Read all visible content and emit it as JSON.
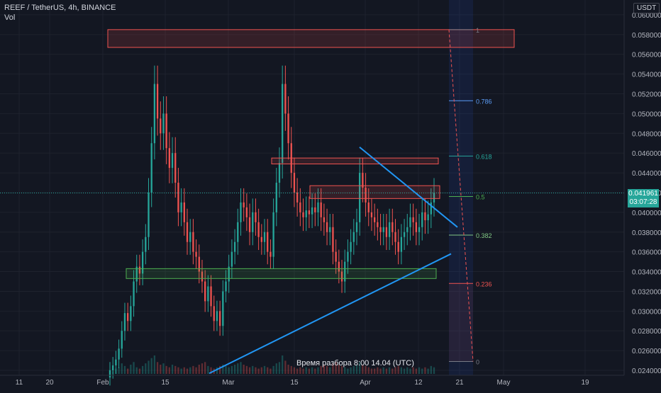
{
  "header": {
    "symbol_line": "REEF / TetherUS, 4h, BINANCE",
    "indicator": "Vol"
  },
  "colors": {
    "background": "#131722",
    "bull": "#26a69a",
    "bear": "#ef5350",
    "trendline": "#2196f3",
    "resistance": "#ef5350",
    "support": "#4caf50",
    "grid": "#1e222d"
  },
  "price_axis": {
    "unit": "USDT",
    "ticks": [
      "0.060000",
      "0.058000",
      "0.056000",
      "0.054000",
      "0.052000",
      "0.050000",
      "0.048000",
      "0.046000",
      "0.044000",
      "0.042000",
      "0.040000",
      "0.038000",
      "0.036000",
      "0.034000",
      "0.032000",
      "0.030000",
      "0.028000",
      "0.026000",
      "0.024000"
    ]
  },
  "current_price": {
    "value": "0.041961",
    "countdown": "03:07:28"
  },
  "time_axis": {
    "ticks": [
      "11",
      "20",
      "Feb",
      "15",
      "Mar",
      "15",
      "Apr",
      "12",
      "21",
      "May",
      "19"
    ]
  },
  "annotation": "Время разбора 8:00 14.04 (UTC)",
  "chart_data": {
    "type": "candlestick",
    "x_ticks": [
      "11",
      "20",
      "Feb",
      "15",
      "Mar",
      "15",
      "Apr",
      "12",
      "21",
      "May",
      "19"
    ],
    "y_range": [
      0.0235,
      0.0615
    ],
    "series": [
      {
        "name": "",
        "close": [
          0.024,
          0.0245,
          0.0251,
          0.0262,
          0.028,
          0.0298,
          0.029,
          0.0305,
          0.033,
          0.0345,
          0.0338,
          0.036,
          0.0375,
          0.042,
          0.047,
          0.053,
          0.0495,
          0.048,
          0.05,
          0.0465,
          0.0445,
          0.046,
          0.043,
          0.04,
          0.041,
          0.039,
          0.037,
          0.038,
          0.036,
          0.0355,
          0.034,
          0.033,
          0.031,
          0.0325,
          0.0305,
          0.029,
          0.03,
          0.0285,
          0.032,
          0.033,
          0.0345,
          0.036,
          0.037,
          0.039,
          0.041,
          0.0405,
          0.0395,
          0.038,
          0.04,
          0.039,
          0.0375,
          0.037,
          0.038,
          0.036,
          0.0355,
          0.04,
          0.043,
          0.045,
          0.053,
          0.05,
          0.047,
          0.044,
          0.042,
          0.041,
          0.04,
          0.0395,
          0.0402,
          0.0398,
          0.0405,
          0.04,
          0.041,
          0.0395,
          0.039,
          0.038,
          0.0385,
          0.036,
          0.035,
          0.034,
          0.033,
          0.035,
          0.036,
          0.037,
          0.038,
          0.039,
          0.044,
          0.0425,
          0.041,
          0.04,
          0.0395,
          0.039,
          0.0385,
          0.038,
          0.0385,
          0.0375,
          0.039,
          0.038,
          0.037,
          0.036,
          0.0375,
          0.038,
          0.0385,
          0.0395,
          0.039,
          0.038,
          0.0385,
          0.04,
          0.0392,
          0.0398,
          0.041,
          0.042
        ]
      }
    ],
    "zones": [
      {
        "type": "resistance",
        "top": 0.0585,
        "bottom": 0.0567
      },
      {
        "type": "resistance",
        "top": 0.0455,
        "bottom": 0.0449
      },
      {
        "type": "resistance",
        "top": 0.0427,
        "bottom": 0.0414
      },
      {
        "type": "support",
        "top": 0.0343,
        "bottom": 0.0333
      }
    ],
    "trendlines": [
      {
        "name": "",
        "from": [
          0.0466,
          "Mar 29"
        ],
        "to": [
          0.0385,
          "Apr 16"
        ]
      },
      {
        "name": "",
        "from": [
          0.0237,
          "Mar 01"
        ],
        "to": [
          0.0358,
          "Apr 17"
        ]
      }
    ],
    "fibonacci": {
      "levels": [
        {
          "label": "1",
          "value": 0.0585,
          "color": "#787b86"
        },
        {
          "label": "0.786",
          "value": 0.0513,
          "color": "#5b9cf6"
        },
        {
          "label": "0.618",
          "value": 0.0457,
          "color": "#26a69a"
        },
        {
          "label": "0.5",
          "value": 0.0416,
          "color": "#4caf50"
        },
        {
          "label": "0.382",
          "value": 0.0377,
          "color": "#81c784"
        },
        {
          "label": "0.236",
          "value": 0.0328,
          "color": "#ef5350"
        },
        {
          "label": "0",
          "value": 0.0249,
          "color": "#787b86"
        }
      ]
    },
    "volume": [
      3,
      2,
      4,
      5,
      8,
      6,
      4,
      7,
      9,
      5,
      4,
      6,
      8,
      10,
      12,
      14,
      9,
      7,
      8,
      6,
      5,
      7,
      6,
      5,
      4,
      5,
      4,
      5,
      6,
      5,
      7,
      8,
      9,
      6,
      5,
      4,
      5,
      6,
      7,
      6,
      5,
      6,
      7,
      8,
      9,
      7,
      6,
      5,
      6,
      5,
      4,
      5,
      6,
      5,
      4,
      6,
      8,
      9,
      14,
      10,
      7,
      6,
      5,
      4,
      5,
      4,
      5,
      4,
      5,
      4,
      5,
      6,
      7,
      6,
      5,
      8,
      9,
      7,
      6,
      5,
      4,
      5,
      6,
      7,
      9,
      7,
      6,
      5,
      4,
      4,
      5,
      4,
      5,
      4,
      5,
      4,
      5,
      6,
      5,
      4,
      5,
      4,
      5,
      4,
      5,
      4,
      5,
      4,
      6,
      5
    ]
  }
}
